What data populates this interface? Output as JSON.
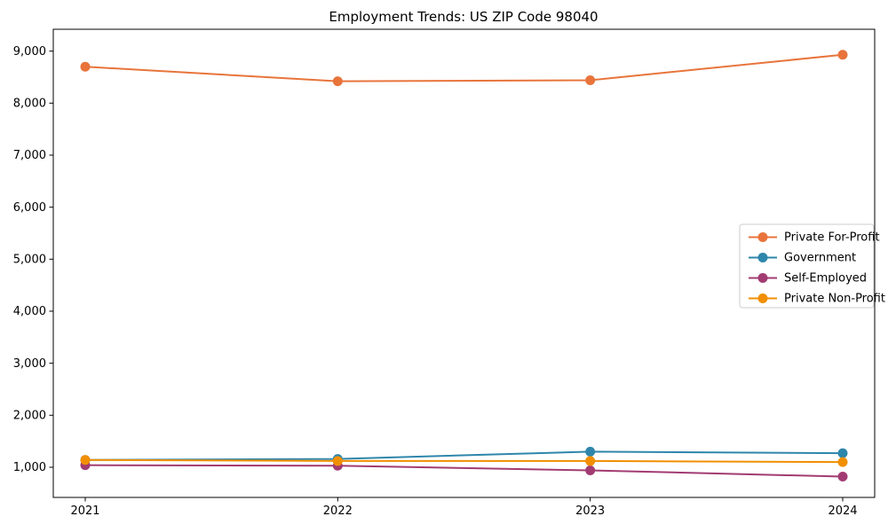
{
  "figure": {
    "background": "#ffffff",
    "text_color": "#000000",
    "axis_color": "#000000",
    "legend_frame_color": "#cccccc",
    "legend_background": "#ffffff"
  },
  "chart_data": {
    "type": "line",
    "title": "Employment Trends: US ZIP Code 98040",
    "xlabel": "",
    "ylabel": "",
    "categories": [
      "2021",
      "2022",
      "2023",
      "2024"
    ],
    "series": [
      {
        "name": "Private For-Profit",
        "color": "#e8743b",
        "values": [
          8700,
          8420,
          8440,
          8930
        ]
      },
      {
        "name": "Government",
        "color": "#2e86ab",
        "values": [
          1140,
          1160,
          1300,
          1270
        ]
      },
      {
        "name": "Self-Employed",
        "color": "#a23b72",
        "values": [
          1040,
          1030,
          940,
          820
        ]
      },
      {
        "name": "Private Non-Profit",
        "color": "#f18f01",
        "values": [
          1140,
          1120,
          1120,
          1100
        ]
      }
    ],
    "ylim": [
      420,
      9420
    ],
    "yticks": [
      1000,
      2000,
      3000,
      4000,
      5000,
      6000,
      7000,
      8000,
      9000
    ],
    "ytick_labels": [
      "1,000",
      "2,000",
      "3,000",
      "4,000",
      "5,000",
      "6,000",
      "7,000",
      "8,000",
      "9,000"
    ],
    "grid": false,
    "legend_position": "center right",
    "marker": "circle"
  }
}
